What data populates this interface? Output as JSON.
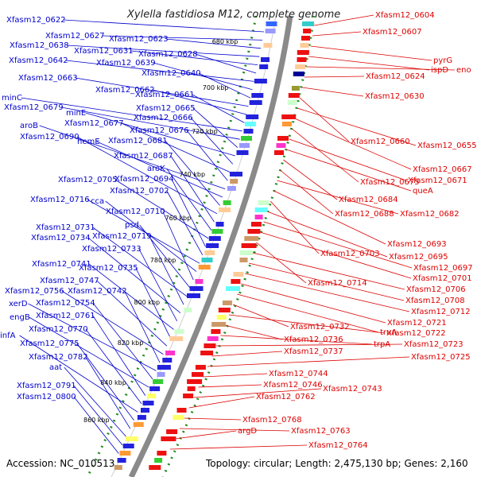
{
  "title": "Xylella fastidiosa M12, complete genome",
  "footer": {
    "accession": "Accession: NC_010513",
    "summary": "Topology: circular; Length: 2,475,130 bp; Genes: 2,160"
  },
  "colors": {
    "forward_label": "#0000cc",
    "reverse_label": "#dd0000",
    "backbone": "#888888",
    "tick_dots": "#228b22"
  },
  "ticks": [
    "680 kbp",
    "700 kbp",
    "720 kbp",
    "740 kbp",
    "760 kbp",
    "780 kbp",
    "800 kbp",
    "820 kbp",
    "840 kbp",
    "860 kbp"
  ],
  "left_labels": [
    "Xfasm12_0622",
    "Xfasm12_0627",
    "Xfasm12_0623",
    "Xfasm12_0638",
    "Xfasm12_0631",
    "Xfasm12_0628",
    "Xfasm12_0642",
    "Xfasm12_0639",
    "Xfasm12_0640",
    "Xfasm12_0663",
    "Xfasm12_0662",
    "Xfasm12_0661",
    "minC",
    "Xfasm12_0679",
    "Xfasm12_0665",
    "minE",
    "Xfasm12_0666",
    "Xfasm12_0677",
    "Xfasm12_0676",
    "aroB",
    "hemE",
    "Xfasm12_0681",
    "Xfasm12_0690",
    "Xfasm12_0687",
    "aroK",
    "Xfasm12_0705",
    "Xfasm12_0694",
    "Xfasm12_0702",
    "Xfasm12_0716",
    "cca",
    "Xfasm12_0710",
    "psd",
    "Xfasm12_0731",
    "Xfasm12_0719",
    "Xfasm12_0734",
    "Xfasm12_0733",
    "Xfasm12_0741",
    "Xfasm12_0735",
    "Xfasm12_0747",
    "Xfasm12_0756",
    "Xfasm12_0742",
    "xerD",
    "Xfasm12_0754",
    "engB",
    "Xfasm12_0761",
    "Xfasm12_0770",
    "infA",
    "Xfasm12_0775",
    "Xfasm12_0782",
    "aat",
    "Xfasm12_0791",
    "Xfasm12_0800"
  ],
  "right_labels": [
    "Xfasm12_0604",
    "Xfasm12_0607",
    "pyrG",
    "ispD",
    "eno",
    "Xfasm12_0624",
    "Xfasm12_0630",
    "Xfasm12_0660",
    "Xfasm12_0655",
    "Xfasm12_0667",
    "Xfasm12_0675",
    "Xfasm12_0671",
    "queA",
    "Xfasm12_0684",
    "Xfasm12_0688",
    "Xfasm12_0682",
    "Xfasm12_0693",
    "Xfasm12_0703",
    "Xfasm12_0695",
    "Xfasm12_0697",
    "Xfasm12_0701",
    "Xfasm12_0714",
    "Xfasm12_0706",
    "Xfasm12_0708",
    "Xfasm12_0712",
    "Xfasm12_0721",
    "truA",
    "Xfasm12_0732",
    "Xfasm12_0722",
    "Xfasm12_0736",
    "trpA",
    "Xfasm12_0723",
    "Xfasm12_0737",
    "Xfasm12_0725",
    "Xfasm12_0744",
    "Xfasm12_0746",
    "Xfasm12_0743",
    "Xfasm12_0762",
    "Xfasm12_0768",
    "Xfasm12_0763",
    "argD",
    "Xfasm12_0764"
  ]
}
